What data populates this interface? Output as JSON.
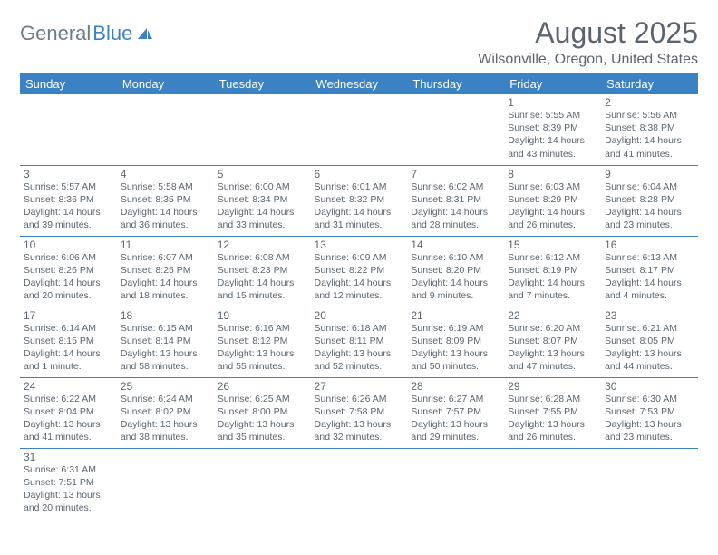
{
  "logo": {
    "general": "General",
    "blue": "Blue",
    "icon_color": "#3b82c4"
  },
  "title": "August 2025",
  "location": "Wilsonville, Oregon, United States",
  "colors": {
    "header_bg": "#3b82c4",
    "header_fg": "#ffffff",
    "text": "#5a6570",
    "rule": "#3b82c4",
    "page_bg": "#ffffff"
  },
  "typography": {
    "title_fontsize": 32,
    "location_fontsize": 16,
    "dayheader_fontsize": 13,
    "daynum_fontsize": 12,
    "cell_fontsize": 10.5
  },
  "day_headers": [
    "Sunday",
    "Monday",
    "Tuesday",
    "Wednesday",
    "Thursday",
    "Friday",
    "Saturday"
  ],
  "weeks": [
    [
      null,
      null,
      null,
      null,
      null,
      {
        "n": "1",
        "sunrise": "Sunrise: 5:55 AM",
        "sunset": "Sunset: 8:39 PM",
        "daylight": "Daylight: 14 hours and 43 minutes."
      },
      {
        "n": "2",
        "sunrise": "Sunrise: 5:56 AM",
        "sunset": "Sunset: 8:38 PM",
        "daylight": "Daylight: 14 hours and 41 minutes."
      }
    ],
    [
      {
        "n": "3",
        "sunrise": "Sunrise: 5:57 AM",
        "sunset": "Sunset: 8:36 PM",
        "daylight": "Daylight: 14 hours and 39 minutes."
      },
      {
        "n": "4",
        "sunrise": "Sunrise: 5:58 AM",
        "sunset": "Sunset: 8:35 PM",
        "daylight": "Daylight: 14 hours and 36 minutes."
      },
      {
        "n": "5",
        "sunrise": "Sunrise: 6:00 AM",
        "sunset": "Sunset: 8:34 PM",
        "daylight": "Daylight: 14 hours and 33 minutes."
      },
      {
        "n": "6",
        "sunrise": "Sunrise: 6:01 AM",
        "sunset": "Sunset: 8:32 PM",
        "daylight": "Daylight: 14 hours and 31 minutes."
      },
      {
        "n": "7",
        "sunrise": "Sunrise: 6:02 AM",
        "sunset": "Sunset: 8:31 PM",
        "daylight": "Daylight: 14 hours and 28 minutes."
      },
      {
        "n": "8",
        "sunrise": "Sunrise: 6:03 AM",
        "sunset": "Sunset: 8:29 PM",
        "daylight": "Daylight: 14 hours and 26 minutes."
      },
      {
        "n": "9",
        "sunrise": "Sunrise: 6:04 AM",
        "sunset": "Sunset: 8:28 PM",
        "daylight": "Daylight: 14 hours and 23 minutes."
      }
    ],
    [
      {
        "n": "10",
        "sunrise": "Sunrise: 6:06 AM",
        "sunset": "Sunset: 8:26 PM",
        "daylight": "Daylight: 14 hours and 20 minutes."
      },
      {
        "n": "11",
        "sunrise": "Sunrise: 6:07 AM",
        "sunset": "Sunset: 8:25 PM",
        "daylight": "Daylight: 14 hours and 18 minutes."
      },
      {
        "n": "12",
        "sunrise": "Sunrise: 6:08 AM",
        "sunset": "Sunset: 8:23 PM",
        "daylight": "Daylight: 14 hours and 15 minutes."
      },
      {
        "n": "13",
        "sunrise": "Sunrise: 6:09 AM",
        "sunset": "Sunset: 8:22 PM",
        "daylight": "Daylight: 14 hours and 12 minutes."
      },
      {
        "n": "14",
        "sunrise": "Sunrise: 6:10 AM",
        "sunset": "Sunset: 8:20 PM",
        "daylight": "Daylight: 14 hours and 9 minutes."
      },
      {
        "n": "15",
        "sunrise": "Sunrise: 6:12 AM",
        "sunset": "Sunset: 8:19 PM",
        "daylight": "Daylight: 14 hours and 7 minutes."
      },
      {
        "n": "16",
        "sunrise": "Sunrise: 6:13 AM",
        "sunset": "Sunset: 8:17 PM",
        "daylight": "Daylight: 14 hours and 4 minutes."
      }
    ],
    [
      {
        "n": "17",
        "sunrise": "Sunrise: 6:14 AM",
        "sunset": "Sunset: 8:15 PM",
        "daylight": "Daylight: 14 hours and 1 minute."
      },
      {
        "n": "18",
        "sunrise": "Sunrise: 6:15 AM",
        "sunset": "Sunset: 8:14 PM",
        "daylight": "Daylight: 13 hours and 58 minutes."
      },
      {
        "n": "19",
        "sunrise": "Sunrise: 6:16 AM",
        "sunset": "Sunset: 8:12 PM",
        "daylight": "Daylight: 13 hours and 55 minutes."
      },
      {
        "n": "20",
        "sunrise": "Sunrise: 6:18 AM",
        "sunset": "Sunset: 8:11 PM",
        "daylight": "Daylight: 13 hours and 52 minutes."
      },
      {
        "n": "21",
        "sunrise": "Sunrise: 6:19 AM",
        "sunset": "Sunset: 8:09 PM",
        "daylight": "Daylight: 13 hours and 50 minutes."
      },
      {
        "n": "22",
        "sunrise": "Sunrise: 6:20 AM",
        "sunset": "Sunset: 8:07 PM",
        "daylight": "Daylight: 13 hours and 47 minutes."
      },
      {
        "n": "23",
        "sunrise": "Sunrise: 6:21 AM",
        "sunset": "Sunset: 8:05 PM",
        "daylight": "Daylight: 13 hours and 44 minutes."
      }
    ],
    [
      {
        "n": "24",
        "sunrise": "Sunrise: 6:22 AM",
        "sunset": "Sunset: 8:04 PM",
        "daylight": "Daylight: 13 hours and 41 minutes."
      },
      {
        "n": "25",
        "sunrise": "Sunrise: 6:24 AM",
        "sunset": "Sunset: 8:02 PM",
        "daylight": "Daylight: 13 hours and 38 minutes."
      },
      {
        "n": "26",
        "sunrise": "Sunrise: 6:25 AM",
        "sunset": "Sunset: 8:00 PM",
        "daylight": "Daylight: 13 hours and 35 minutes."
      },
      {
        "n": "27",
        "sunrise": "Sunrise: 6:26 AM",
        "sunset": "Sunset: 7:58 PM",
        "daylight": "Daylight: 13 hours and 32 minutes."
      },
      {
        "n": "28",
        "sunrise": "Sunrise: 6:27 AM",
        "sunset": "Sunset: 7:57 PM",
        "daylight": "Daylight: 13 hours and 29 minutes."
      },
      {
        "n": "29",
        "sunrise": "Sunrise: 6:28 AM",
        "sunset": "Sunset: 7:55 PM",
        "daylight": "Daylight: 13 hours and 26 minutes."
      },
      {
        "n": "30",
        "sunrise": "Sunrise: 6:30 AM",
        "sunset": "Sunset: 7:53 PM",
        "daylight": "Daylight: 13 hours and 23 minutes."
      }
    ],
    [
      {
        "n": "31",
        "sunrise": "Sunrise: 6:31 AM",
        "sunset": "Sunset: 7:51 PM",
        "daylight": "Daylight: 13 hours and 20 minutes."
      },
      null,
      null,
      null,
      null,
      null,
      null
    ]
  ]
}
